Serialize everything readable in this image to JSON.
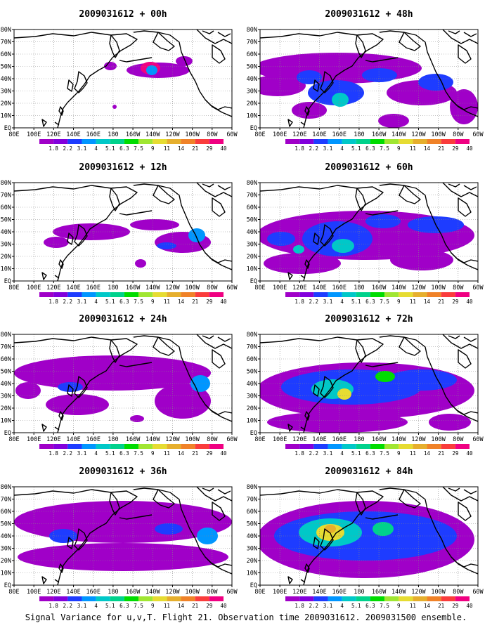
{
  "caption": "Signal Variance for u,v,T. Flight 21. Observation time 2009031612. 2009031500 ensemble.",
  "x_ticks": [
    "80E",
    "100E",
    "120E",
    "140E",
    "160E",
    "180",
    "160W",
    "140W",
    "120W",
    "100W",
    "80W",
    "60W"
  ],
  "y_ticks": [
    "80N",
    "70N",
    "60N",
    "50N",
    "40N",
    "30N",
    "20N",
    "10N",
    "EQ"
  ],
  "colorbar": {
    "labels": [
      "1.8",
      "2.2",
      "3.1",
      "4",
      "5.1",
      "6.3",
      "7.5",
      "9",
      "11",
      "14",
      "21",
      "29",
      "40"
    ],
    "colors": [
      "#a000c8",
      "#8200dc",
      "#1e3cff",
      "#0096ff",
      "#00c8c8",
      "#00d28c",
      "#00dc00",
      "#a0e632",
      "#e6dc32",
      "#e6af2d",
      "#f08228",
      "#fa3c3c",
      "#f00082"
    ]
  },
  "panels": [
    {
      "title": "2009031612 + 00h",
      "col": 0,
      "row": 0,
      "blobs": [
        {
          "x": 225,
          "y": 58,
          "rx": 45,
          "ry": 11,
          "lvl": 0
        },
        {
          "x": 157,
          "y": 52,
          "rx": 9,
          "ry": 6,
          "lvl": 0
        },
        {
          "x": 262,
          "y": 45,
          "rx": 12,
          "ry": 7,
          "lvl": 0
        },
        {
          "x": 214,
          "y": 55,
          "rx": 14,
          "ry": 9,
          "lvl": 12
        },
        {
          "x": 216,
          "y": 58,
          "rx": 8,
          "ry": 7,
          "lvl": 3
        },
        {
          "x": 163,
          "y": 110,
          "rx": 3,
          "ry": 3,
          "lvl": 0
        }
      ]
    },
    {
      "title": "2009031612 + 48h",
      "col": 1,
      "row": 0,
      "blobs": [
        {
          "x": 480,
          "y": 55,
          "rx": 120,
          "ry": 22,
          "lvl": 0
        },
        {
          "x": 395,
          "y": 80,
          "rx": 40,
          "ry": 15,
          "lvl": 0
        },
        {
          "x": 600,
          "y": 90,
          "rx": 50,
          "ry": 18,
          "lvl": 0
        },
        {
          "x": 440,
          "y": 115,
          "rx": 25,
          "ry": 12,
          "lvl": 0
        },
        {
          "x": 660,
          "y": 110,
          "rx": 20,
          "ry": 25,
          "lvl": 0
        },
        {
          "x": 560,
          "y": 130,
          "rx": 22,
          "ry": 10,
          "lvl": 0
        },
        {
          "x": 478,
          "y": 90,
          "rx": 40,
          "ry": 18,
          "lvl": 2
        },
        {
          "x": 440,
          "y": 68,
          "rx": 18,
          "ry": 10,
          "lvl": 2
        },
        {
          "x": 540,
          "y": 65,
          "rx": 25,
          "ry": 10,
          "lvl": 2
        },
        {
          "x": 620,
          "y": 75,
          "rx": 25,
          "ry": 12,
          "lvl": 2
        },
        {
          "x": 484,
          "y": 100,
          "rx": 12,
          "ry": 10,
          "lvl": 4
        }
      ]
    },
    {
      "title": "2009031612 + 12h",
      "col": 0,
      "row": 1,
      "blobs": [
        {
          "x": 260,
          "y": 85,
          "rx": 40,
          "ry": 15,
          "lvl": 0
        },
        {
          "x": 130,
          "y": 70,
          "rx": 55,
          "ry": 12,
          "lvl": 0
        },
        {
          "x": 80,
          "y": 85,
          "rx": 18,
          "ry": 8,
          "lvl": 0
        },
        {
          "x": 220,
          "y": 60,
          "rx": 35,
          "ry": 8,
          "lvl": 0
        },
        {
          "x": 200,
          "y": 115,
          "rx": 8,
          "ry": 6,
          "lvl": 0
        },
        {
          "x": 280,
          "y": 75,
          "rx": 12,
          "ry": 10,
          "lvl": 3
        },
        {
          "x": 237,
          "y": 90,
          "rx": 14,
          "ry": 5,
          "lvl": 2
        }
      ]
    },
    {
      "title": "2009031612 + 60h",
      "col": 1,
      "row": 1,
      "blobs": [
        {
          "x": 520,
          "y": 75,
          "rx": 155,
          "ry": 35,
          "lvl": 0
        },
        {
          "x": 430,
          "y": 115,
          "rx": 55,
          "ry": 15,
          "lvl": 0
        },
        {
          "x": 600,
          "y": 110,
          "rx": 45,
          "ry": 15,
          "lvl": 0
        },
        {
          "x": 480,
          "y": 80,
          "rx": 50,
          "ry": 25,
          "lvl": 2
        },
        {
          "x": 400,
          "y": 80,
          "rx": 20,
          "ry": 10,
          "lvl": 2
        },
        {
          "x": 620,
          "y": 60,
          "rx": 40,
          "ry": 12,
          "lvl": 2
        },
        {
          "x": 545,
          "y": 55,
          "rx": 25,
          "ry": 10,
          "lvl": 2
        },
        {
          "x": 488,
          "y": 90,
          "rx": 16,
          "ry": 10,
          "lvl": 4
        },
        {
          "x": 425,
          "y": 95,
          "rx": 8,
          "ry": 6,
          "lvl": 4
        }
      ]
    },
    {
      "title": "2009031612 + 24h",
      "col": 0,
      "row": 2,
      "blobs": [
        {
          "x": 160,
          "y": 55,
          "rx": 140,
          "ry": 25,
          "lvl": 0
        },
        {
          "x": 260,
          "y": 95,
          "rx": 40,
          "ry": 25,
          "lvl": 0
        },
        {
          "x": 110,
          "y": 100,
          "rx": 45,
          "ry": 15,
          "lvl": 0
        },
        {
          "x": 40,
          "y": 80,
          "rx": 18,
          "ry": 12,
          "lvl": 0
        },
        {
          "x": 195,
          "y": 120,
          "rx": 10,
          "ry": 5,
          "lvl": 0
        },
        {
          "x": 285,
          "y": 70,
          "rx": 14,
          "ry": 12,
          "lvl": 3
        },
        {
          "x": 100,
          "y": 75,
          "rx": 18,
          "ry": 7,
          "lvl": 2
        }
      ]
    },
    {
      "title": "2009031612 + 72h",
      "col": 1,
      "row": 2,
      "blobs": [
        {
          "x": 520,
          "y": 80,
          "rx": 155,
          "ry": 40,
          "lvl": 0
        },
        {
          "x": 480,
          "y": 125,
          "rx": 100,
          "ry": 15,
          "lvl": 0
        },
        {
          "x": 640,
          "y": 125,
          "rx": 30,
          "ry": 12,
          "lvl": 0
        },
        {
          "x": 500,
          "y": 75,
          "rx": 100,
          "ry": 25,
          "lvl": 2
        },
        {
          "x": 600,
          "y": 65,
          "rx": 50,
          "ry": 15,
          "lvl": 2
        },
        {
          "x": 473,
          "y": 78,
          "rx": 30,
          "ry": 14,
          "lvl": 4
        },
        {
          "x": 548,
          "y": 60,
          "rx": 14,
          "ry": 8,
          "lvl": 6
        },
        {
          "x": 490,
          "y": 85,
          "rx": 10,
          "ry": 8,
          "lvl": 8
        }
      ]
    },
    {
      "title": "2009031612 + 36h",
      "col": 0,
      "row": 3,
      "blobs": [
        {
          "x": 175,
          "y": 50,
          "rx": 155,
          "ry": 30,
          "lvl": 0
        },
        {
          "x": 175,
          "y": 100,
          "rx": 150,
          "ry": 20,
          "lvl": 0
        },
        {
          "x": 90,
          "y": 70,
          "rx": 20,
          "ry": 10,
          "lvl": 2
        },
        {
          "x": 240,
          "y": 60,
          "rx": 20,
          "ry": 8,
          "lvl": 2
        },
        {
          "x": 295,
          "y": 70,
          "rx": 15,
          "ry": 12,
          "lvl": 3
        }
      ]
    },
    {
      "title": "2009031612 + 84h",
      "col": 1,
      "row": 3,
      "blobs": [
        {
          "x": 520,
          "y": 75,
          "rx": 155,
          "ry": 55,
          "lvl": 0
        },
        {
          "x": 520,
          "y": 70,
          "rx": 130,
          "ry": 35,
          "lvl": 2
        },
        {
          "x": 470,
          "y": 65,
          "rx": 45,
          "ry": 20,
          "lvl": 4
        },
        {
          "x": 545,
          "y": 60,
          "rx": 15,
          "ry": 10,
          "lvl": 5
        },
        {
          "x": 470,
          "y": 65,
          "rx": 20,
          "ry": 12,
          "lvl": 8
        },
        {
          "x": 470,
          "y": 60,
          "rx": 8,
          "ry": 6,
          "lvl": 9
        }
      ]
    }
  ]
}
